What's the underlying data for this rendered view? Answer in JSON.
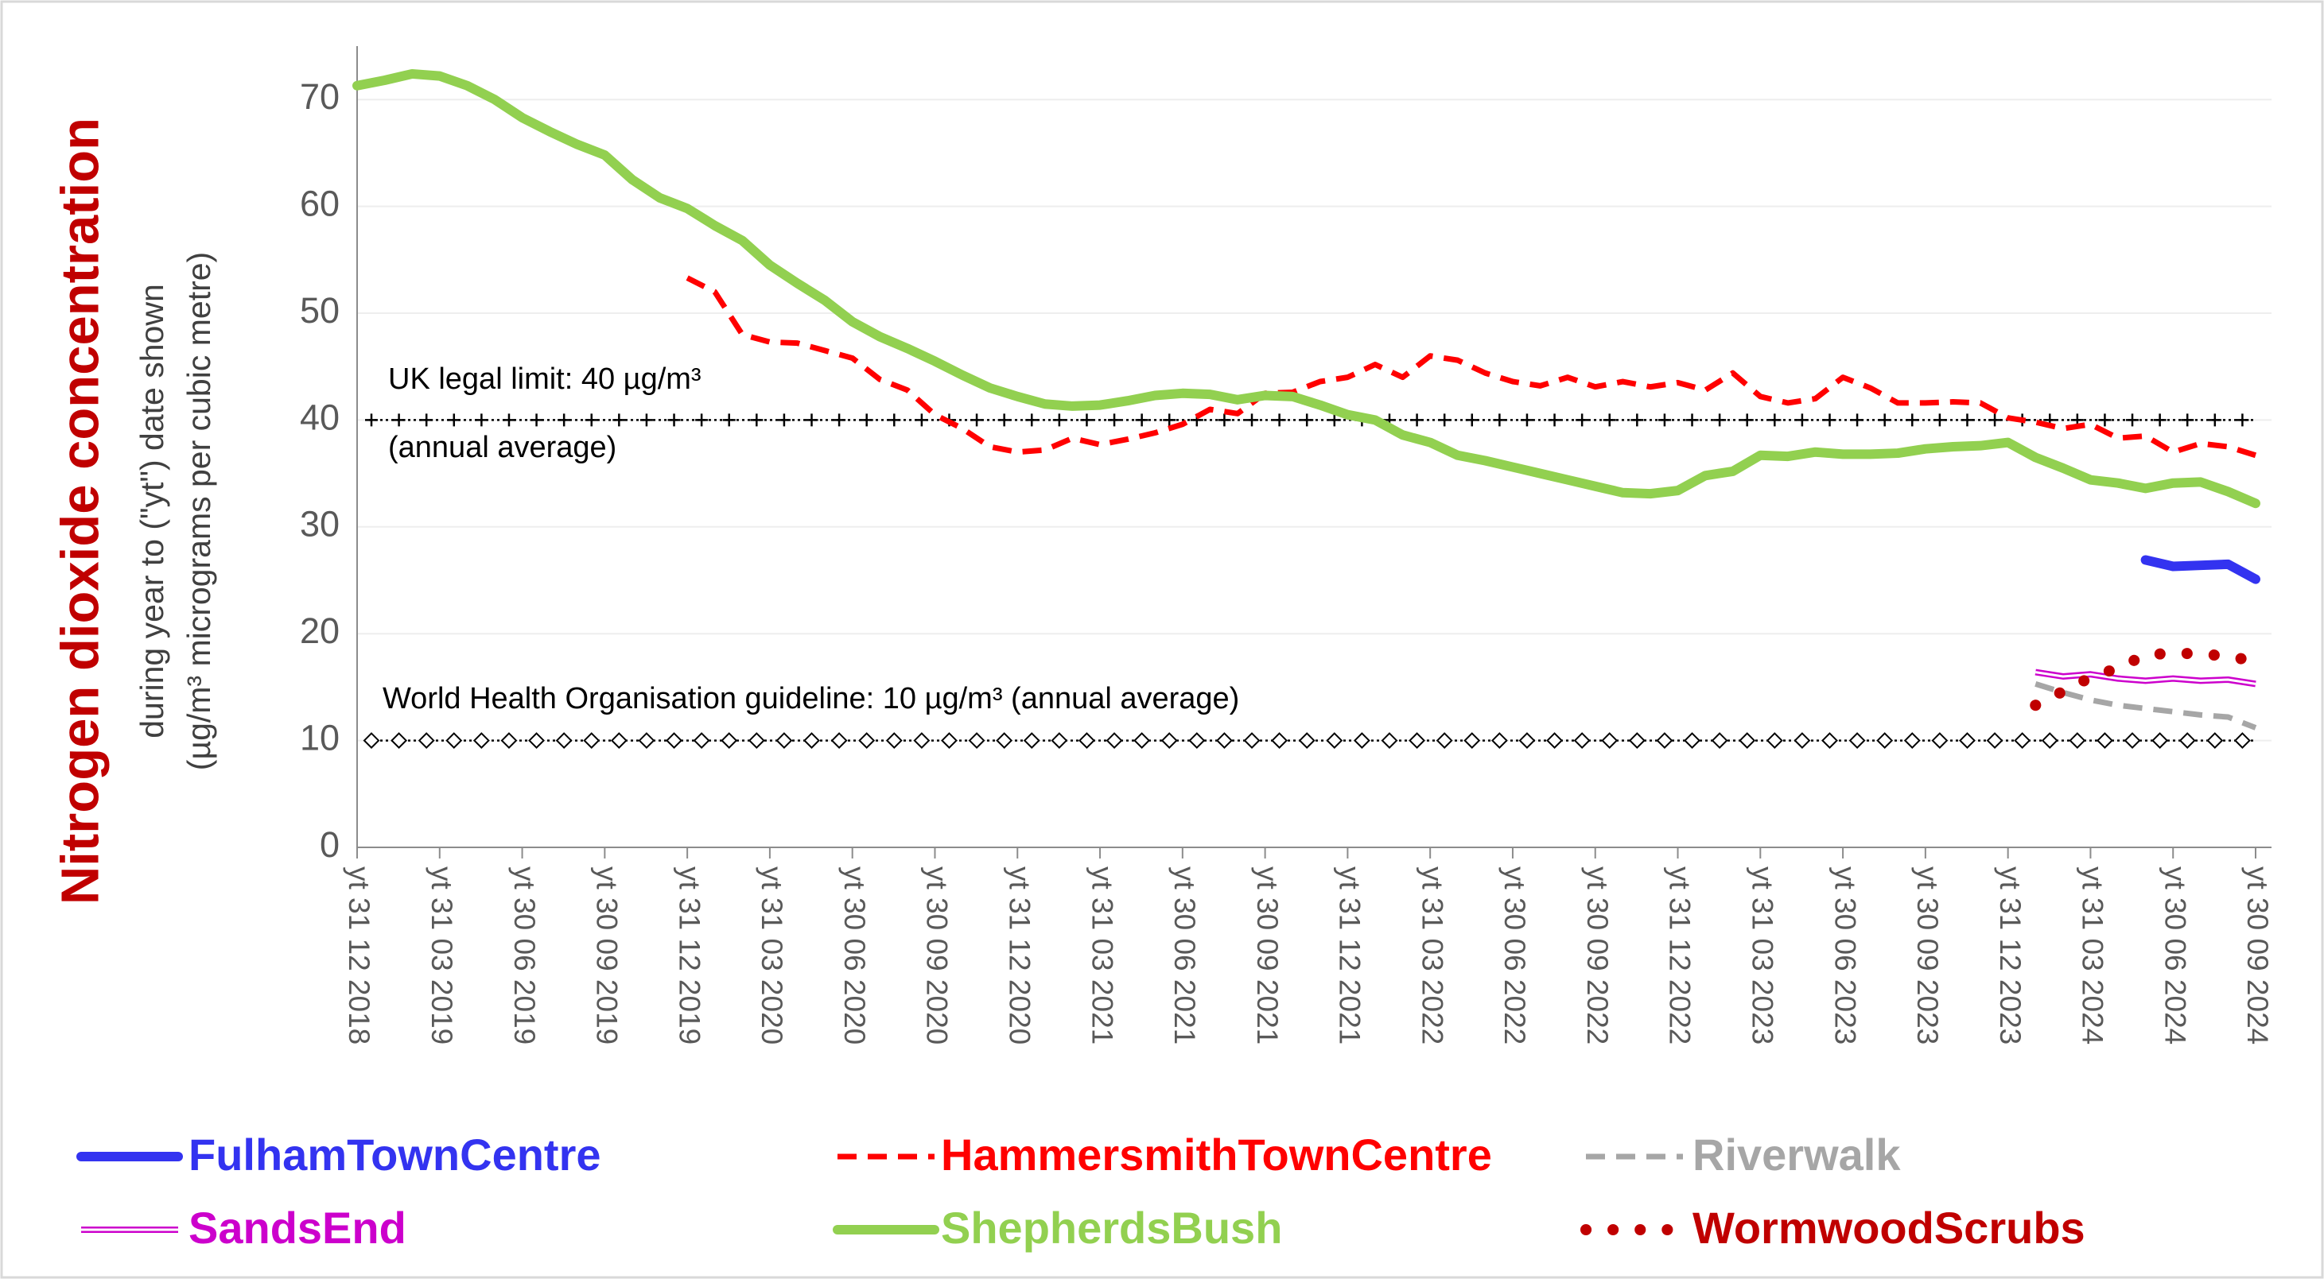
{
  "chart_data": {
    "type": "line",
    "ylabel": [
      "Nitrogen dioxide concentration",
      "during year to (\"yt\") date shown",
      "(µg/m³ micrograms per cubic metre)"
    ],
    "categories": [
      "yt 31 12 2018",
      null,
      null,
      "yt 31 03 2019",
      null,
      null,
      "yt 30 06 2019",
      null,
      null,
      "yt 30 09 2019",
      null,
      null,
      "yt 31 12 2019",
      null,
      null,
      "yt 31 03 2020",
      null,
      null,
      "yt 30 06 2020",
      null,
      null,
      "yt 30 09 2020",
      null,
      null,
      "yt 31 12 2020",
      null,
      null,
      "yt 31 03 2021",
      null,
      null,
      "yt 30 06 2021",
      null,
      null,
      "yt 30 09 2021",
      null,
      null,
      "yt 31 12 2021",
      null,
      null,
      "yt 31 03 2022",
      null,
      null,
      "yt 30 06 2022",
      null,
      null,
      "yt 30 09 2022",
      null,
      null,
      "yt 31 12 2022",
      null,
      null,
      "yt 31 03 2023",
      null,
      null,
      "yt 30 06 2023",
      null,
      null,
      "yt 30 09 2023",
      null,
      null,
      "yt 31 12 2023",
      null,
      null,
      "yt 31 03 2024",
      null,
      null,
      "yt 30 06 2024",
      null,
      null,
      "yt 30 09 2024"
    ],
    "series": [
      {
        "name": "FulhamTownCentre",
        "color": "#3333f0",
        "style": "solid",
        "values": [
          null,
          null,
          null,
          null,
          null,
          null,
          null,
          null,
          null,
          null,
          null,
          null,
          null,
          null,
          null,
          null,
          null,
          null,
          null,
          null,
          null,
          null,
          null,
          null,
          null,
          null,
          null,
          null,
          null,
          null,
          null,
          null,
          null,
          null,
          null,
          null,
          null,
          null,
          null,
          null,
          null,
          null,
          null,
          null,
          null,
          null,
          null,
          null,
          null,
          null,
          null,
          null,
          null,
          null,
          null,
          null,
          null,
          null,
          null,
          null,
          null,
          null,
          null,
          null,
          null,
          26.9,
          26.3,
          26.4,
          26.5,
          25.1
        ]
      },
      {
        "name": "HammersmithTownCentre",
        "color": "#ff0000",
        "style": "dashed",
        "values": [
          null,
          null,
          null,
          null,
          null,
          null,
          null,
          null,
          null,
          null,
          null,
          null,
          53.3,
          52.0,
          48.0,
          47.3,
          47.2,
          46.5,
          45.8,
          43.8,
          42.8,
          40.5,
          39.2,
          37.5,
          37.0,
          37.2,
          38.3,
          37.7,
          38.2,
          38.8,
          39.6,
          41.0,
          40.6,
          42.5,
          42.6,
          43.6,
          44.0,
          45.2,
          44.0,
          46.0,
          45.6,
          44.4,
          43.6,
          43.2,
          44.0,
          43.1,
          43.6,
          43.1,
          43.5,
          42.8,
          44.4,
          42.2,
          41.6,
          42.0,
          44.0,
          43.0,
          41.6,
          41.6,
          41.7,
          41.6,
          40.2,
          39.8,
          39.2,
          39.6,
          38.3,
          38.5,
          37.0,
          37.8,
          37.5,
          36.7
        ]
      },
      {
        "name": "Riverwalk",
        "color": "#a6a6a6",
        "style": "dashed",
        "values": [
          null,
          null,
          null,
          null,
          null,
          null,
          null,
          null,
          null,
          null,
          null,
          null,
          null,
          null,
          null,
          null,
          null,
          null,
          null,
          null,
          null,
          null,
          null,
          null,
          null,
          null,
          null,
          null,
          null,
          null,
          null,
          null,
          null,
          null,
          null,
          null,
          null,
          null,
          null,
          null,
          null,
          null,
          null,
          null,
          null,
          null,
          null,
          null,
          null,
          null,
          null,
          null,
          null,
          null,
          null,
          null,
          null,
          null,
          null,
          null,
          null,
          15.3,
          14.5,
          13.8,
          13.3,
          13.0,
          12.7,
          12.4,
          12.2,
          11.2
        ]
      },
      {
        "name": "SandsEnd",
        "color": "#cc00cc",
        "style": "double",
        "values": [
          null,
          null,
          null,
          null,
          null,
          null,
          null,
          null,
          null,
          null,
          null,
          null,
          null,
          null,
          null,
          null,
          null,
          null,
          null,
          null,
          null,
          null,
          null,
          null,
          null,
          null,
          null,
          null,
          null,
          null,
          null,
          null,
          null,
          null,
          null,
          null,
          null,
          null,
          null,
          null,
          null,
          null,
          null,
          null,
          null,
          null,
          null,
          null,
          null,
          null,
          null,
          null,
          null,
          null,
          null,
          null,
          null,
          null,
          null,
          null,
          null,
          16.4,
          16.0,
          16.2,
          15.8,
          15.6,
          15.8,
          15.6,
          15.7,
          15.3
        ]
      },
      {
        "name": "ShepherdsBush",
        "color": "#92d050",
        "style": "solid",
        "values": [
          71.3,
          71.8,
          72.4,
          72.2,
          71.3,
          70.0,
          68.3,
          67.0,
          65.8,
          64.8,
          62.5,
          60.8,
          59.8,
          58.2,
          56.8,
          54.5,
          52.8,
          51.2,
          49.2,
          47.8,
          46.7,
          45.5,
          44.2,
          43.0,
          42.2,
          41.5,
          41.3,
          41.4,
          41.8,
          42.3,
          42.5,
          42.4,
          41.9,
          42.3,
          42.2,
          41.4,
          40.5,
          40.0,
          38.6,
          37.9,
          36.7,
          36.2,
          35.6,
          35.0,
          34.4,
          33.8,
          33.2,
          33.1,
          33.4,
          34.8,
          35.2,
          36.7,
          36.6,
          37.0,
          36.8,
          36.8,
          36.9,
          37.3,
          37.5,
          37.6,
          37.9,
          36.5,
          35.5,
          34.4,
          34.1,
          33.6,
          34.1,
          34.2,
          33.3,
          32.2
        ]
      },
      {
        "name": "WormwoodScrubs",
        "color": "#c00000",
        "style": "dotted",
        "values": [
          null,
          null,
          null,
          null,
          null,
          null,
          null,
          null,
          null,
          null,
          null,
          null,
          null,
          null,
          null,
          null,
          null,
          null,
          null,
          null,
          null,
          null,
          null,
          null,
          null,
          null,
          null,
          null,
          null,
          null,
          null,
          null,
          null,
          null,
          null,
          null,
          null,
          null,
          null,
          null,
          null,
          null,
          null,
          null,
          null,
          null,
          null,
          null,
          null,
          null,
          null,
          null,
          null,
          null,
          null,
          null,
          null,
          null,
          null,
          null,
          null,
          13.3,
          14.6,
          15.9,
          16.8,
          18.0,
          18.2,
          18.1,
          17.9,
          17.4
        ]
      }
    ],
    "reference_lines": [
      {
        "value": 40,
        "marker": "plus",
        "labels": [
          "UK legal limit: 40 µg/m³",
          "(annual average)"
        ]
      },
      {
        "value": 10,
        "marker": "diamond",
        "labels": [
          "World Health Organisation guideline: 10 µg/m³ (annual average)"
        ]
      }
    ],
    "ylim": [
      0,
      75
    ],
    "yticks": [
      0,
      10,
      20,
      30,
      40,
      50,
      60,
      70
    ],
    "grid": true,
    "legend": "bottom"
  }
}
